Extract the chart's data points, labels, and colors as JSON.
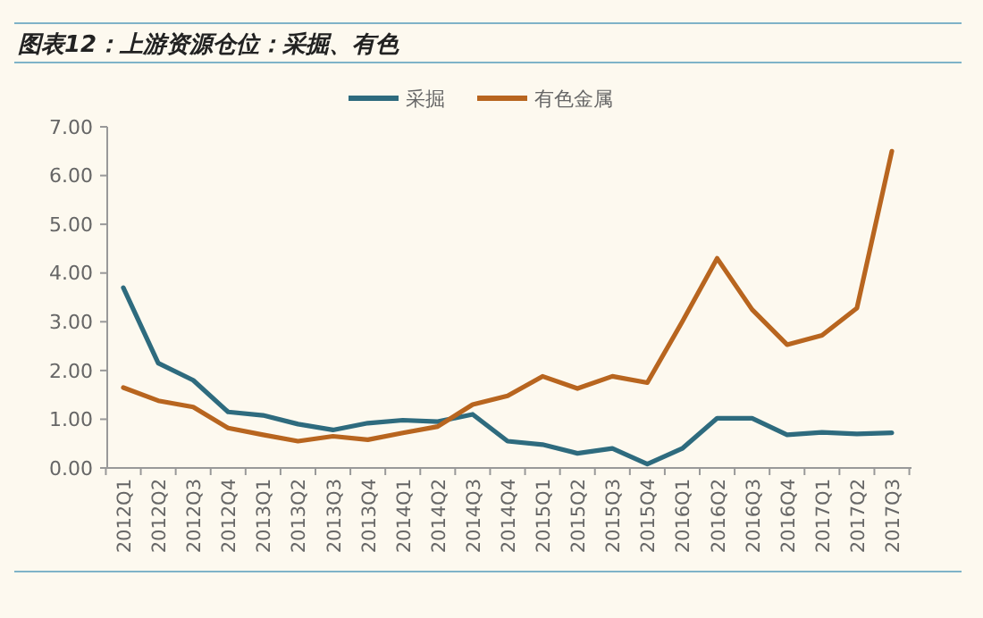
{
  "chart_data": {
    "type": "line",
    "title": "图表12：上游资源仓位：采掘、有色",
    "categories": [
      "2012Q1",
      "2012Q2",
      "2012Q3",
      "2012Q4",
      "2013Q1",
      "2013Q2",
      "2013Q3",
      "2013Q4",
      "2014Q1",
      "2014Q2",
      "2014Q3",
      "2014Q4",
      "2015Q1",
      "2015Q2",
      "2015Q3",
      "2015Q4",
      "2016Q1",
      "2016Q2",
      "2016Q3",
      "2016Q4",
      "2017Q1",
      "2017Q2",
      "2017Q3"
    ],
    "series": [
      {
        "name": "采掘",
        "color": "#2e6b7e",
        "values": [
          3.7,
          2.15,
          1.8,
          1.15,
          1.08,
          0.9,
          0.78,
          0.92,
          0.98,
          0.95,
          1.1,
          0.55,
          0.48,
          0.3,
          0.4,
          0.08,
          0.4,
          1.02,
          1.02,
          0.68,
          0.73,
          0.7,
          0.72
        ]
      },
      {
        "name": "有色金属",
        "color": "#b8651f",
        "values": [
          1.65,
          1.38,
          1.25,
          0.82,
          0.68,
          0.55,
          0.65,
          0.58,
          0.72,
          0.85,
          1.3,
          1.48,
          1.88,
          1.63,
          1.88,
          1.75,
          3.0,
          4.3,
          3.25,
          2.53,
          2.72,
          3.28,
          6.5
        ]
      }
    ],
    "ylim": [
      0,
      7
    ],
    "yticks": [
      {
        "value": 0,
        "label": "0.00"
      },
      {
        "value": 1,
        "label": "1.00"
      },
      {
        "value": 2,
        "label": "2.00"
      },
      {
        "value": 3,
        "label": "3.00"
      },
      {
        "value": 4,
        "label": "4.00"
      },
      {
        "value": 5,
        "label": "5.00"
      },
      {
        "value": 6,
        "label": "6.00"
      },
      {
        "value": 7,
        "label": "7.00"
      }
    ],
    "legend": "top",
    "grid": false
  }
}
